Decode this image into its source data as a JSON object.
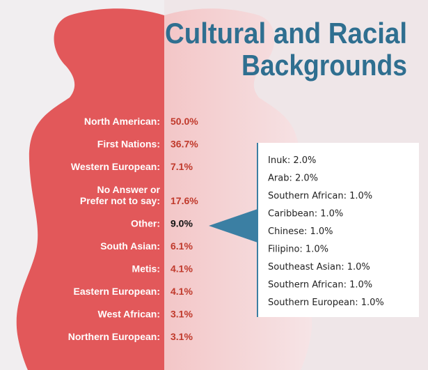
{
  "title": [
    "Cultural and Racial",
    "Backgrounds"
  ],
  "rows": [
    {
      "label": [
        "North American:"
      ],
      "value": "50.0%"
    },
    {
      "label": [
        "First Nations:"
      ],
      "value": "36.7%"
    },
    {
      "label": [
        "Western European:"
      ],
      "value": "7.1%"
    },
    {
      "label": [
        "No Answer or",
        "Prefer not to say:"
      ],
      "value": "17.6%"
    },
    {
      "label": [
        "Other:"
      ],
      "value": "9.0%"
    },
    {
      "label": [
        "South Asian:"
      ],
      "value": "6.1%"
    },
    {
      "label": [
        "Metis:"
      ],
      "value": "4.1%"
    },
    {
      "label": [
        "Eastern European:"
      ],
      "value": "4.1%"
    },
    {
      "label": [
        "West African:"
      ],
      "value": "3.1%"
    },
    {
      "label": [
        "Northern European:"
      ],
      "value": "3.1%"
    }
  ],
  "other_breakdown": [
    "Inuk: 2.0%",
    "Arab: 2.0%",
    "Southern African: 1.0%",
    "Caribbean: 1.0%",
    "Chinese: 1.0%",
    "Filipino: 1.0%",
    "Southeast Asian: 1.0%",
    "Southern African: 1.0%",
    "Southern European: 1.0%"
  ]
}
